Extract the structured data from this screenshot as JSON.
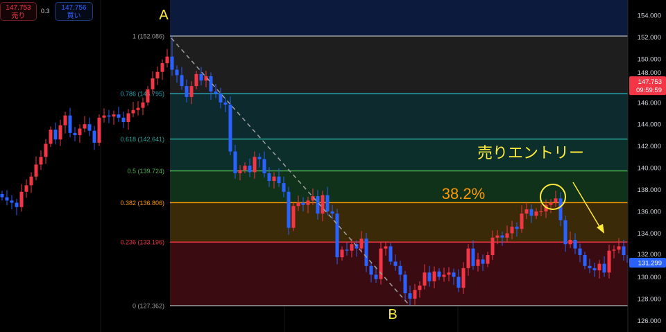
{
  "quote": {
    "sell_price": "147.753",
    "sell_label": "売り",
    "spread": "0.3",
    "buy_price": "147.756",
    "buy_label": "買い"
  },
  "annotations": {
    "point_a": "A",
    "point_b": "B",
    "retracement_label": "38.2%",
    "entry_label": "売りエントリー"
  },
  "current_price": {
    "price": "147.753",
    "countdown": "09:59:59",
    "color": "#f23645"
  },
  "last_price_tag": {
    "price": "131.299",
    "color": "#2962ff"
  },
  "chart_data": {
    "type": "candlestick",
    "ylim": [
      126,
      155.5
    ],
    "y_ticks": [
      "154.000",
      "152.000",
      "150.000",
      "148.000",
      "146.000",
      "144.000",
      "142.000",
      "140.000",
      "138.000",
      "136.000",
      "134.000",
      "132.000",
      "130.000",
      "128.000",
      "126.000"
    ],
    "up_color": "#f23645",
    "down_color": "#2962ff",
    "open_first": 137.6,
    "closes": [
      137.3,
      137.0,
      136.8,
      136.4,
      137.8,
      138.4,
      139.2,
      140.3,
      141.0,
      142.2,
      143.5,
      142.6,
      143.9,
      144.8,
      143.2,
      143.0,
      143.6,
      144.0,
      143.4,
      142.3,
      144.6,
      144.8,
      144.7,
      144.9,
      144.6,
      144.2,
      145.0,
      145.3,
      145.5,
      146.0,
      147.2,
      148.2,
      148.8,
      149.6,
      150.2,
      149.0,
      148.5,
      147.5,
      146.5,
      147.5,
      148.6,
      148.0,
      148.4,
      147.0,
      146.8,
      146.0,
      145.8,
      141.5,
      139.5,
      139.8,
      140.2,
      139.6,
      141.0,
      140.8,
      139.5,
      138.8,
      139.2,
      138.6,
      137.8,
      134.5,
      136.5,
      136.8,
      136.6,
      137.0,
      137.4,
      135.8,
      137.5,
      136.0,
      135.8,
      131.8,
      132.5,
      132.4,
      133.0,
      132.6,
      133.5,
      131.0,
      130.2,
      129.8,
      132.6,
      132.8,
      131.4,
      131.0,
      130.2,
      128.5,
      128.0,
      128.8,
      129.2,
      130.4,
      129.6,
      130.5,
      130.0,
      130.2,
      130.4,
      130.0,
      129.0,
      130.8,
      132.6,
      131.0,
      131.6,
      131.2,
      132.0,
      133.6,
      133.8,
      133.6,
      134.0,
      134.6,
      134.4,
      135.8,
      136.2,
      135.6,
      136.0,
      136.0,
      136.6,
      136.8,
      137.2,
      135.2,
      133.0,
      133.4,
      132.6,
      132.0,
      131.0,
      130.8,
      130.6,
      131.2,
      130.4,
      132.4,
      132.5,
      132.8,
      132.0,
      131.3
    ],
    "fibonacci": [
      {
        "level": "1",
        "price": "152.086",
        "line": "#9e9e9e",
        "fill": "#1e1e1e"
      },
      {
        "level": "0.786",
        "price": "146.795",
        "line": "#22a6b3",
        "fill": "#0d2a2e"
      },
      {
        "level": "0.618",
        "price": "142.641",
        "line": "#26a69a",
        "fill": "#0c2f2b"
      },
      {
        "level": "0.5",
        "price": "139.724",
        "line": "#4caf50",
        "fill": "#10321a"
      },
      {
        "level": "0.382",
        "price": "136.806",
        "line": "#ff9800",
        "fill": "#3a2a08"
      },
      {
        "level": "0.236",
        "price": "133.196",
        "line": "#f23645",
        "fill": "#3a0c12"
      },
      {
        "level": "0",
        "price": "127.362",
        "line": "#9e9e9e",
        "fill": null
      }
    ],
    "above_fill": "#0b1a3d"
  }
}
